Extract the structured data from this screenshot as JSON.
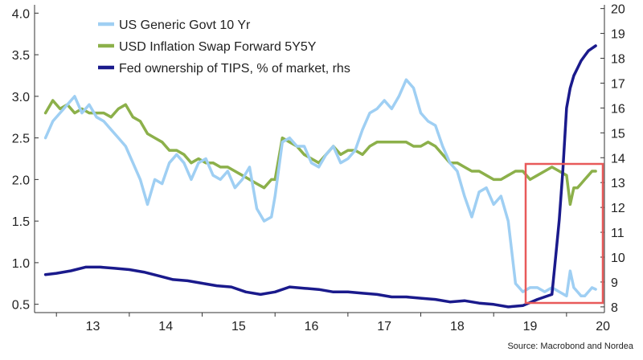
{
  "chart_data": {
    "type": "line",
    "title": "",
    "xlabel": "",
    "ylabel": "",
    "source": "Source: Macrobond and Nordea",
    "x_ticks": [
      "13",
      "14",
      "15",
      "16",
      "17",
      "18",
      "19",
      "20"
    ],
    "y_left": {
      "ylim": [
        0.4,
        4.1
      ],
      "ticks": [
        "0.5",
        "1.0",
        "1.5",
        "2.0",
        "2.5",
        "3.0",
        "3.5",
        "4.0"
      ]
    },
    "y_right": {
      "ylim": [
        7.77,
        20.15
      ],
      "ticks": [
        "8",
        "9",
        "10",
        "11",
        "12",
        "13",
        "14",
        "15",
        "16",
        "17",
        "18",
        "19",
        "20"
      ]
    },
    "xlim": [
      2012.7,
      2020.52
    ],
    "grid": false,
    "legend_position": "top-left",
    "series": [
      {
        "name": "US Generic Govt 10 Yr",
        "axis": "left",
        "color": "#9fcff3",
        "x": [
          2012.85,
          2012.95,
          2013.05,
          2013.15,
          2013.25,
          2013.35,
          2013.45,
          2013.55,
          2013.65,
          2013.75,
          2013.85,
          2013.95,
          2014.05,
          2014.15,
          2014.25,
          2014.35,
          2014.45,
          2014.55,
          2014.65,
          2014.75,
          2014.85,
          2014.95,
          2015.05,
          2015.15,
          2015.25,
          2015.35,
          2015.45,
          2015.55,
          2015.65,
          2015.75,
          2015.85,
          2015.95,
          2016.0,
          2016.1,
          2016.2,
          2016.3,
          2016.4,
          2016.5,
          2016.6,
          2016.7,
          2016.8,
          2016.9,
          2017.0,
          2017.1,
          2017.2,
          2017.3,
          2017.4,
          2017.5,
          2017.6,
          2017.7,
          2017.8,
          2017.9,
          2018.0,
          2018.1,
          2018.2,
          2018.3,
          2018.4,
          2018.5,
          2018.6,
          2018.7,
          2018.8,
          2018.9,
          2019.0,
          2019.1,
          2019.2,
          2019.3,
          2019.4,
          2019.5,
          2019.6,
          2019.7,
          2019.8,
          2019.9,
          2020.0,
          2020.05,
          2020.1,
          2020.15,
          2020.2,
          2020.25,
          2020.3,
          2020.35,
          2020.4
        ],
        "values": [
          2.5,
          2.7,
          2.8,
          2.9,
          3.0,
          2.8,
          2.9,
          2.75,
          2.7,
          2.6,
          2.5,
          2.4,
          2.2,
          2.0,
          1.7,
          2.0,
          1.95,
          2.2,
          2.3,
          2.2,
          2.0,
          2.2,
          2.25,
          2.05,
          2.0,
          2.1,
          1.9,
          2.0,
          2.15,
          1.65,
          1.5,
          1.55,
          1.8,
          2.45,
          2.5,
          2.4,
          2.4,
          2.2,
          2.15,
          2.3,
          2.4,
          2.2,
          2.25,
          2.35,
          2.6,
          2.8,
          2.85,
          2.95,
          2.85,
          3.0,
          3.2,
          3.1,
          2.8,
          2.7,
          2.65,
          2.4,
          2.2,
          2.1,
          1.8,
          1.55,
          1.85,
          1.9,
          1.7,
          1.8,
          1.5,
          0.75,
          0.65,
          0.7,
          0.7,
          0.65,
          0.7,
          0.65,
          0.6,
          0.9,
          0.7,
          0.65,
          0.6,
          0.6,
          0.65,
          0.7,
          0.68
        ]
      },
      {
        "name": "USD Inflation Swap Forward 5Y5Y",
        "axis": "left",
        "color": "#8cb04a",
        "x": [
          2012.85,
          2012.95,
          2013.05,
          2013.15,
          2013.25,
          2013.35,
          2013.45,
          2013.55,
          2013.65,
          2013.75,
          2013.85,
          2013.95,
          2014.05,
          2014.15,
          2014.25,
          2014.35,
          2014.45,
          2014.55,
          2014.65,
          2014.75,
          2014.85,
          2014.95,
          2015.05,
          2015.15,
          2015.25,
          2015.35,
          2015.45,
          2015.55,
          2015.65,
          2015.75,
          2015.85,
          2015.95,
          2016.0,
          2016.1,
          2016.2,
          2016.3,
          2016.4,
          2016.5,
          2016.6,
          2016.7,
          2016.8,
          2016.9,
          2017.0,
          2017.1,
          2017.2,
          2017.3,
          2017.4,
          2017.5,
          2017.6,
          2017.7,
          2017.8,
          2017.9,
          2018.0,
          2018.1,
          2018.2,
          2018.3,
          2018.4,
          2018.5,
          2018.6,
          2018.7,
          2018.8,
          2018.9,
          2019.0,
          2019.1,
          2019.2,
          2019.3,
          2019.4,
          2019.5,
          2019.6,
          2019.7,
          2019.8,
          2019.9,
          2020.0,
          2020.05,
          2020.1,
          2020.15,
          2020.2,
          2020.25,
          2020.3,
          2020.35,
          2020.4
        ],
        "values": [
          2.8,
          2.95,
          2.85,
          2.9,
          2.8,
          2.85,
          2.8,
          2.8,
          2.8,
          2.75,
          2.85,
          2.9,
          2.75,
          2.7,
          2.55,
          2.5,
          2.45,
          2.35,
          2.35,
          2.3,
          2.2,
          2.25,
          2.2,
          2.2,
          2.15,
          2.15,
          2.1,
          2.05,
          2.0,
          1.95,
          1.9,
          2.0,
          2.0,
          2.5,
          2.45,
          2.4,
          2.3,
          2.25,
          2.2,
          2.3,
          2.4,
          2.3,
          2.35,
          2.35,
          2.3,
          2.4,
          2.45,
          2.45,
          2.45,
          2.45,
          2.45,
          2.4,
          2.4,
          2.45,
          2.4,
          2.3,
          2.2,
          2.2,
          2.15,
          2.1,
          2.1,
          2.05,
          2.0,
          2.0,
          2.05,
          2.1,
          2.1,
          2.0,
          2.05,
          2.1,
          2.15,
          2.1,
          2.05,
          1.7,
          1.9,
          1.9,
          1.95,
          2.0,
          2.05,
          2.1,
          2.1
        ]
      },
      {
        "name": "Fed ownership of TIPS, % of market, rhs",
        "axis": "right",
        "color": "#1a1a8c",
        "x": [
          2012.85,
          2013.0,
          2013.2,
          2013.4,
          2013.6,
          2013.8,
          2014.0,
          2014.2,
          2014.4,
          2014.6,
          2014.8,
          2015.0,
          2015.2,
          2015.4,
          2015.6,
          2015.8,
          2016.0,
          2016.2,
          2016.4,
          2016.6,
          2016.8,
          2017.0,
          2017.2,
          2017.4,
          2017.6,
          2017.8,
          2018.0,
          2018.2,
          2018.4,
          2018.6,
          2018.8,
          2019.0,
          2019.2,
          2019.4,
          2019.6,
          2019.8,
          2019.85,
          2019.9,
          2019.95,
          2020.0,
          2020.05,
          2020.1,
          2020.15,
          2020.2,
          2020.25,
          2020.3,
          2020.35,
          2020.4
        ],
        "values": [
          9.3,
          9.35,
          9.45,
          9.6,
          9.6,
          9.55,
          9.5,
          9.4,
          9.25,
          9.1,
          9.05,
          8.95,
          8.85,
          8.8,
          8.6,
          8.5,
          8.6,
          8.8,
          8.75,
          8.7,
          8.6,
          8.6,
          8.55,
          8.5,
          8.4,
          8.4,
          8.35,
          8.3,
          8.2,
          8.25,
          8.15,
          8.1,
          8.0,
          8.05,
          8.3,
          8.5,
          10.0,
          11.5,
          13.5,
          16.0,
          16.8,
          17.3,
          17.6,
          17.9,
          18.1,
          18.3,
          18.4,
          18.5
        ]
      }
    ]
  }
}
